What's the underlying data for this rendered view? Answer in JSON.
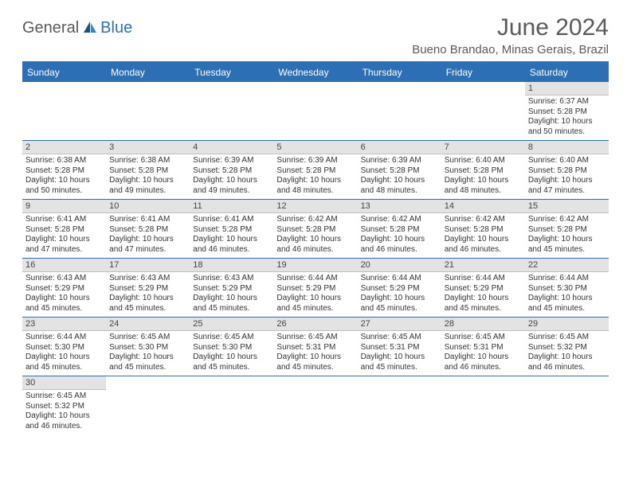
{
  "logo": {
    "part1": "General",
    "part2": "Blue"
  },
  "title": "June 2024",
  "location": "Bueno Brandao, Minas Gerais, Brazil",
  "colors": {
    "header_bg": "#2c6fb5",
    "header_text": "#ffffff",
    "date_bar_bg": "#e3e3e3",
    "border": "#2c6fb5"
  },
  "dayNames": [
    "Sunday",
    "Monday",
    "Tuesday",
    "Wednesday",
    "Thursday",
    "Friday",
    "Saturday"
  ],
  "weeks": [
    [
      {
        "empty": true
      },
      {
        "empty": true
      },
      {
        "empty": true
      },
      {
        "empty": true
      },
      {
        "empty": true
      },
      {
        "empty": true
      },
      {
        "date": "1",
        "sunrise": "Sunrise: 6:37 AM",
        "sunset": "Sunset: 5:28 PM",
        "daylight1": "Daylight: 10 hours",
        "daylight2": "and 50 minutes."
      }
    ],
    [
      {
        "date": "2",
        "sunrise": "Sunrise: 6:38 AM",
        "sunset": "Sunset: 5:28 PM",
        "daylight1": "Daylight: 10 hours",
        "daylight2": "and 50 minutes."
      },
      {
        "date": "3",
        "sunrise": "Sunrise: 6:38 AM",
        "sunset": "Sunset: 5:28 PM",
        "daylight1": "Daylight: 10 hours",
        "daylight2": "and 49 minutes."
      },
      {
        "date": "4",
        "sunrise": "Sunrise: 6:39 AM",
        "sunset": "Sunset: 5:28 PM",
        "daylight1": "Daylight: 10 hours",
        "daylight2": "and 49 minutes."
      },
      {
        "date": "5",
        "sunrise": "Sunrise: 6:39 AM",
        "sunset": "Sunset: 5:28 PM",
        "daylight1": "Daylight: 10 hours",
        "daylight2": "and 48 minutes."
      },
      {
        "date": "6",
        "sunrise": "Sunrise: 6:39 AM",
        "sunset": "Sunset: 5:28 PM",
        "daylight1": "Daylight: 10 hours",
        "daylight2": "and 48 minutes."
      },
      {
        "date": "7",
        "sunrise": "Sunrise: 6:40 AM",
        "sunset": "Sunset: 5:28 PM",
        "daylight1": "Daylight: 10 hours",
        "daylight2": "and 48 minutes."
      },
      {
        "date": "8",
        "sunrise": "Sunrise: 6:40 AM",
        "sunset": "Sunset: 5:28 PM",
        "daylight1": "Daylight: 10 hours",
        "daylight2": "and 47 minutes."
      }
    ],
    [
      {
        "date": "9",
        "sunrise": "Sunrise: 6:41 AM",
        "sunset": "Sunset: 5:28 PM",
        "daylight1": "Daylight: 10 hours",
        "daylight2": "and 47 minutes."
      },
      {
        "date": "10",
        "sunrise": "Sunrise: 6:41 AM",
        "sunset": "Sunset: 5:28 PM",
        "daylight1": "Daylight: 10 hours",
        "daylight2": "and 47 minutes."
      },
      {
        "date": "11",
        "sunrise": "Sunrise: 6:41 AM",
        "sunset": "Sunset: 5:28 PM",
        "daylight1": "Daylight: 10 hours",
        "daylight2": "and 46 minutes."
      },
      {
        "date": "12",
        "sunrise": "Sunrise: 6:42 AM",
        "sunset": "Sunset: 5:28 PM",
        "daylight1": "Daylight: 10 hours",
        "daylight2": "and 46 minutes."
      },
      {
        "date": "13",
        "sunrise": "Sunrise: 6:42 AM",
        "sunset": "Sunset: 5:28 PM",
        "daylight1": "Daylight: 10 hours",
        "daylight2": "and 46 minutes."
      },
      {
        "date": "14",
        "sunrise": "Sunrise: 6:42 AM",
        "sunset": "Sunset: 5:28 PM",
        "daylight1": "Daylight: 10 hours",
        "daylight2": "and 46 minutes."
      },
      {
        "date": "15",
        "sunrise": "Sunrise: 6:42 AM",
        "sunset": "Sunset: 5:28 PM",
        "daylight1": "Daylight: 10 hours",
        "daylight2": "and 45 minutes."
      }
    ],
    [
      {
        "date": "16",
        "sunrise": "Sunrise: 6:43 AM",
        "sunset": "Sunset: 5:29 PM",
        "daylight1": "Daylight: 10 hours",
        "daylight2": "and 45 minutes."
      },
      {
        "date": "17",
        "sunrise": "Sunrise: 6:43 AM",
        "sunset": "Sunset: 5:29 PM",
        "daylight1": "Daylight: 10 hours",
        "daylight2": "and 45 minutes."
      },
      {
        "date": "18",
        "sunrise": "Sunrise: 6:43 AM",
        "sunset": "Sunset: 5:29 PM",
        "daylight1": "Daylight: 10 hours",
        "daylight2": "and 45 minutes."
      },
      {
        "date": "19",
        "sunrise": "Sunrise: 6:44 AM",
        "sunset": "Sunset: 5:29 PM",
        "daylight1": "Daylight: 10 hours",
        "daylight2": "and 45 minutes."
      },
      {
        "date": "20",
        "sunrise": "Sunrise: 6:44 AM",
        "sunset": "Sunset: 5:29 PM",
        "daylight1": "Daylight: 10 hours",
        "daylight2": "and 45 minutes."
      },
      {
        "date": "21",
        "sunrise": "Sunrise: 6:44 AM",
        "sunset": "Sunset: 5:29 PM",
        "daylight1": "Daylight: 10 hours",
        "daylight2": "and 45 minutes."
      },
      {
        "date": "22",
        "sunrise": "Sunrise: 6:44 AM",
        "sunset": "Sunset: 5:30 PM",
        "daylight1": "Daylight: 10 hours",
        "daylight2": "and 45 minutes."
      }
    ],
    [
      {
        "date": "23",
        "sunrise": "Sunrise: 6:44 AM",
        "sunset": "Sunset: 5:30 PM",
        "daylight1": "Daylight: 10 hours",
        "daylight2": "and 45 minutes."
      },
      {
        "date": "24",
        "sunrise": "Sunrise: 6:45 AM",
        "sunset": "Sunset: 5:30 PM",
        "daylight1": "Daylight: 10 hours",
        "daylight2": "and 45 minutes."
      },
      {
        "date": "25",
        "sunrise": "Sunrise: 6:45 AM",
        "sunset": "Sunset: 5:30 PM",
        "daylight1": "Daylight: 10 hours",
        "daylight2": "and 45 minutes."
      },
      {
        "date": "26",
        "sunrise": "Sunrise: 6:45 AM",
        "sunset": "Sunset: 5:31 PM",
        "daylight1": "Daylight: 10 hours",
        "daylight2": "and 45 minutes."
      },
      {
        "date": "27",
        "sunrise": "Sunrise: 6:45 AM",
        "sunset": "Sunset: 5:31 PM",
        "daylight1": "Daylight: 10 hours",
        "daylight2": "and 45 minutes."
      },
      {
        "date": "28",
        "sunrise": "Sunrise: 6:45 AM",
        "sunset": "Sunset: 5:31 PM",
        "daylight1": "Daylight: 10 hours",
        "daylight2": "and 46 minutes."
      },
      {
        "date": "29",
        "sunrise": "Sunrise: 6:45 AM",
        "sunset": "Sunset: 5:32 PM",
        "daylight1": "Daylight: 10 hours",
        "daylight2": "and 46 minutes."
      }
    ],
    [
      {
        "date": "30",
        "sunrise": "Sunrise: 6:45 AM",
        "sunset": "Sunset: 5:32 PM",
        "daylight1": "Daylight: 10 hours",
        "daylight2": "and 46 minutes."
      },
      {
        "empty": true
      },
      {
        "empty": true
      },
      {
        "empty": true
      },
      {
        "empty": true
      },
      {
        "empty": true
      },
      {
        "empty": true
      }
    ]
  ]
}
